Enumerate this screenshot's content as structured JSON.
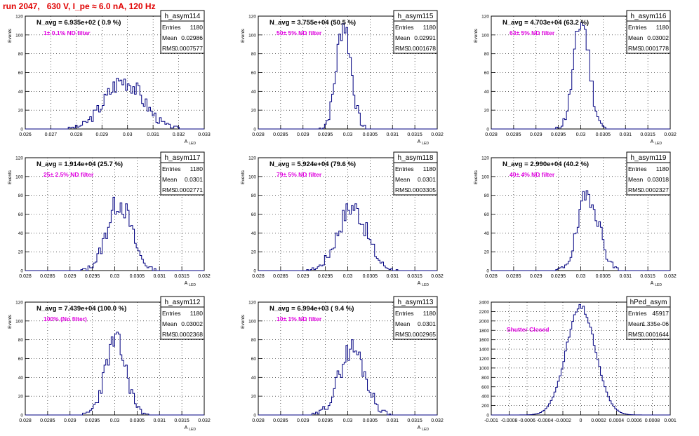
{
  "page_title": "run 2047,   630 V, I_pe ≈ 6.0 nA, 120 Hz",
  "colors": {
    "histogram": "#000080",
    "grid": "#000000",
    "stats_text": "#000000",
    "annotation": "#e000e0",
    "title": "#e00000"
  },
  "chart_data": [
    {
      "type": "histogram",
      "name": "h_asym114",
      "navg": "N_avg = 6.935e+02 ( 0.9 %)",
      "filter": "1± 0.1% ND filter",
      "stats": {
        "entries": "1180",
        "mean": "0.02986",
        "rms": "0.0007577"
      },
      "xlabel": "A_LED",
      "ylabel": "Events",
      "xlim": [
        0.026,
        0.033
      ],
      "ylim": [
        0,
        120
      ],
      "xticks": [
        "0.026",
        "0.027",
        "0.028",
        "0.029",
        "0.03",
        "0.031",
        "0.032",
        "0.033"
      ],
      "yticks": [
        "0",
        "20",
        "40",
        "60",
        "80",
        "100",
        "120"
      ],
      "bins": {
        "mean": 0.02986,
        "rms": 0.00074,
        "peak": 52,
        "seed": 3
      }
    },
    {
      "type": "histogram",
      "name": "h_asym115",
      "navg": "N_avg = 3.755e+04 (50.5 %)",
      "filter": "50± 5% ND filter",
      "stats": {
        "entries": "1180",
        "mean": "0.02991",
        "rms": "0.0001678"
      },
      "xlabel": "A_LED",
      "ylabel": "Events",
      "xlim": [
        0.028,
        0.032
      ],
      "ylim": [
        0,
        120
      ],
      "xticks": [
        "0.028",
        "0.0285",
        "0.029",
        "0.0295",
        "0.03",
        "0.0305",
        "0.031",
        "0.0315",
        "0.032"
      ],
      "yticks": [
        "0",
        "20",
        "40",
        "60",
        "80",
        "100",
        "120"
      ],
      "bins": {
        "mean": 0.02991,
        "rms": 0.000165,
        "peak": 112,
        "seed": 7
      }
    },
    {
      "type": "histogram",
      "name": "h_asym116",
      "navg": "N_avg = 4.703e+04 (63.2 %)",
      "filter": "63± 5% ND filter",
      "stats": {
        "entries": "1180",
        "mean": "0.03002",
        "rms": "0.0001778"
      },
      "xlabel": "A_LED",
      "ylabel": "Events",
      "xlim": [
        0.028,
        0.032
      ],
      "ylim": [
        0,
        120
      ],
      "xticks": [
        "0.028",
        "0.0285",
        "0.029",
        "0.0295",
        "0.03",
        "0.0305",
        "0.031",
        "0.0315",
        "0.032"
      ],
      "yticks": [
        "0",
        "20",
        "40",
        "60",
        "80",
        "100",
        "120"
      ],
      "bins": {
        "mean": 0.03002,
        "rms": 0.000175,
        "peak": 115,
        "seed": 11
      }
    },
    {
      "type": "histogram",
      "name": "h_asym117",
      "navg": "N_avg = 1.914e+04 (25.7 %)",
      "filter": "25± 2.5% ND filter",
      "stats": {
        "entries": "1180",
        "mean": "0.0301",
        "rms": "0.0002771"
      },
      "xlabel": "A_LED",
      "ylabel": "Events",
      "xlim": [
        0.028,
        0.032
      ],
      "ylim": [
        0,
        120
      ],
      "xticks": [
        "0.028",
        "0.0285",
        "0.029",
        "0.0295",
        "0.03",
        "0.0305",
        "0.031",
        "0.0315",
        "0.032"
      ],
      "yticks": [
        "0",
        "20",
        "40",
        "60",
        "80",
        "100",
        "120"
      ],
      "bins": {
        "mean": 0.0301,
        "rms": 0.00027,
        "peak": 73,
        "seed": 13
      }
    },
    {
      "type": "histogram",
      "name": "h_asym118",
      "navg": "N_avg = 5.924e+04 (79.6 %)",
      "filter": "79± 5% ND filter",
      "stats": {
        "entries": "1180",
        "mean": "0.0301",
        "rms": "0.0003305"
      },
      "xlabel": "A_LED",
      "ylabel": "Events",
      "xlim": [
        0.028,
        0.032
      ],
      "ylim": [
        0,
        120
      ],
      "xticks": [
        "0.028",
        "0.0285",
        "0.029",
        "0.0295",
        "0.03",
        "0.0305",
        "0.031",
        "0.0315",
        "0.032"
      ],
      "yticks": [
        "0",
        "20",
        "40",
        "60",
        "80",
        "100",
        "120"
      ],
      "bins": {
        "mean": 0.0301,
        "rms": 0.00032,
        "peak": 68,
        "seed": 17
      }
    },
    {
      "type": "histogram",
      "name": "h_asym119",
      "navg": "N_avg = 2.990e+04 (40.2 %)",
      "filter": "40± 4% ND filter",
      "stats": {
        "entries": "1180",
        "mean": "0.03018",
        "rms": "0.0002327"
      },
      "xlabel": "A_LED",
      "ylabel": "Events",
      "xlim": [
        0.028,
        0.032
      ],
      "ylim": [
        0,
        120
      ],
      "xticks": [
        "0.028",
        "0.0285",
        "0.029",
        "0.0295",
        "0.03",
        "0.0305",
        "0.031",
        "0.0315",
        "0.032"
      ],
      "yticks": [
        "0",
        "20",
        "40",
        "60",
        "80",
        "100",
        "120"
      ],
      "bins": {
        "mean": 0.03018,
        "rms": 0.00023,
        "peak": 82,
        "seed": 19
      }
    },
    {
      "type": "histogram",
      "name": "h_asym112",
      "navg": "N_avg = 7.439e+04 (100.0 %)",
      "filter": "100% (No filter)",
      "stats": {
        "entries": "1180",
        "mean": "0.03002",
        "rms": "0.0002368"
      },
      "xlabel": "A_LED",
      "ylabel": "Events",
      "xlim": [
        0.028,
        0.032
      ],
      "ylim": [
        0,
        120
      ],
      "xticks": [
        "0.028",
        "0.0285",
        "0.029",
        "0.0295",
        "0.03",
        "0.0305",
        "0.031",
        "0.0315",
        "0.032"
      ],
      "yticks": [
        "0",
        "20",
        "40",
        "60",
        "80",
        "100",
        "120"
      ],
      "bins": {
        "mean": 0.03002,
        "rms": 0.000235,
        "peak": 78,
        "seed": 23
      }
    },
    {
      "type": "histogram",
      "name": "h_asym113",
      "navg": "N_avg = 6.994e+03 ( 9.4 %)",
      "filter": "10± 1% ND filter",
      "stats": {
        "entries": "1180",
        "mean": "0.0301",
        "rms": "0.0002965"
      },
      "xlabel": "A_LED",
      "ylabel": "Events",
      "xlim": [
        0.028,
        0.032
      ],
      "ylim": [
        0,
        120
      ],
      "xticks": [
        "0.028",
        "0.0285",
        "0.029",
        "0.0295",
        "0.03",
        "0.0305",
        "0.031",
        "0.0315",
        "0.032"
      ],
      "yticks": [
        "0",
        "20",
        "40",
        "60",
        "80",
        "100",
        "120"
      ],
      "bins": {
        "mean": 0.0301,
        "rms": 0.00029,
        "peak": 71,
        "seed": 29
      }
    },
    {
      "type": "histogram",
      "name": "hPed_asym",
      "navg": "",
      "filter": "Shutter Closed",
      "stats": {
        "entries": "45917",
        "mean": "1.335e-06",
        "rms": "0.0001644"
      },
      "xlabel": "",
      "ylabel": "",
      "xlim": [
        -0.001,
        0.001
      ],
      "ylim": [
        0,
        2400
      ],
      "xticks": [
        "-0.001",
        "-0.0008",
        "-0.0006",
        "-0.0004",
        "-0.0002",
        "0",
        "0.0002",
        "0.0004",
        "0.0006",
        "0.0008",
        "0.001"
      ],
      "yticks": [
        "0",
        "200",
        "400",
        "600",
        "800",
        "1000",
        "1200",
        "1400",
        "1600",
        "1800",
        "2000",
        "2200",
        "2400"
      ],
      "bins": {
        "mean": 0.0,
        "rms": 0.000164,
        "peak": 2290,
        "seed": 31,
        "smooth": true
      }
    }
  ]
}
